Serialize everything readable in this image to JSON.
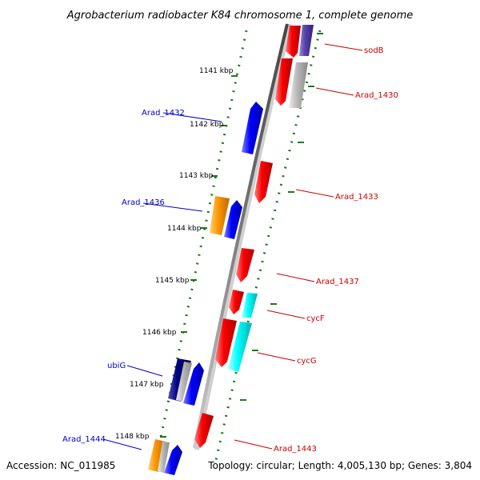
{
  "title": "Agrobacterium radiobacter K84 chromosome 1, complete genome",
  "footer": {
    "accession": "Accession: NC_011985",
    "summary": "Topology: circular; Length: 4,005,130 bp; Genes: 3,804"
  },
  "ruler": [
    {
      "label": "1141 kbp"
    },
    {
      "label": "1142 kbp"
    },
    {
      "label": "1143 kbp"
    },
    {
      "label": "1144 kbp"
    },
    {
      "label": "1145 kbp"
    },
    {
      "label": "1146 kbp"
    },
    {
      "label": "1147 kbp"
    },
    {
      "label": "1148 kbp"
    }
  ],
  "gene_labels_left": [
    {
      "name": "Arad_1432",
      "color": "#0000cc"
    },
    {
      "name": "Arad_1436",
      "color": "#0000cc"
    },
    {
      "name": "ubiG",
      "color": "#0000cc"
    },
    {
      "name": "Arad_1444",
      "color": "#0000cc"
    }
  ],
  "gene_labels_right": [
    {
      "name": "sodB",
      "color": "#cc0000"
    },
    {
      "name": "Arad_1430",
      "color": "#cc0000"
    },
    {
      "name": "Arad_1433",
      "color": "#cc0000"
    },
    {
      "name": "Arad_1437",
      "color": "#cc0000"
    },
    {
      "name": "cycF",
      "color": "#cc0000"
    },
    {
      "name": "cycG",
      "color": "#cc0000"
    },
    {
      "name": "Arad_1443",
      "color": "#cc0000"
    }
  ],
  "colors": {
    "backbone": "#888888",
    "tick_green": "#1a7a1a",
    "forward_cds": "#0000ff",
    "reverse_cds": "#ff0000",
    "rna": "#00ffff",
    "orange": "#ff9900",
    "gray": "#bbbbbb",
    "navy": "#000080",
    "slate": "#5544aa"
  }
}
